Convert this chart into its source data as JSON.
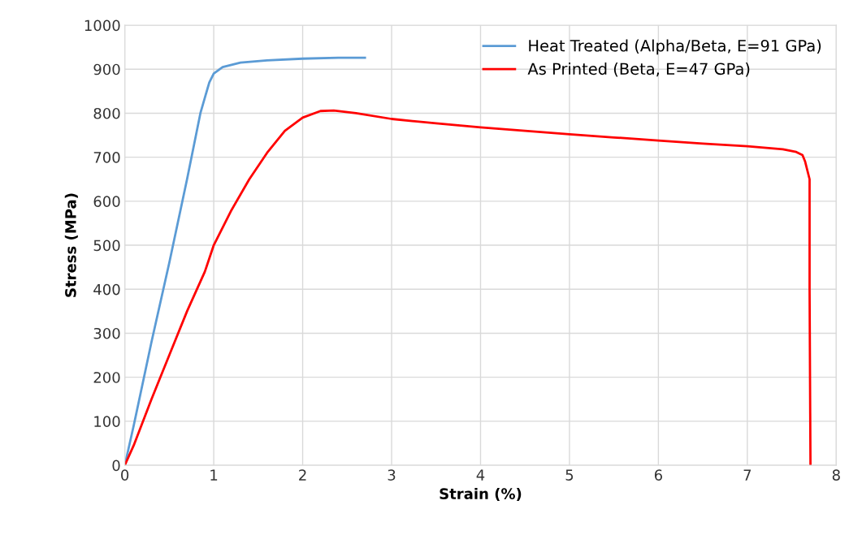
{
  "chart_data": {
    "type": "line",
    "xlabel": "Strain (%)",
    "ylabel": "Stress (MPa)",
    "xlim": [
      0,
      8
    ],
    "xticks": [
      0,
      1,
      2,
      3,
      4,
      5,
      6,
      7,
      8
    ],
    "ylim": [
      0,
      1000
    ],
    "yticks": [
      0,
      100,
      200,
      300,
      400,
      500,
      600,
      700,
      800,
      900,
      1000
    ],
    "grid": true,
    "legend": "top right",
    "marker": "none",
    "line_style": "solid",
    "series": [
      {
        "name": "Heat Treated (Alpha/Beta, E=91 GPa)",
        "color": "#5b9bd5",
        "x": [
          0,
          0.1,
          0.3,
          0.5,
          0.7,
          0.85,
          0.95,
          1.0,
          1.1,
          1.3,
          1.6,
          2.0,
          2.4,
          2.7
        ],
        "values": [
          0,
          90,
          280,
          460,
          650,
          800,
          870,
          890,
          905,
          915,
          920,
          924,
          926,
          926
        ]
      },
      {
        "name": "As Printed (Beta, E=47 GPa)",
        "color": "#ff0000",
        "x": [
          0,
          0.1,
          0.3,
          0.5,
          0.7,
          0.9,
          1.0,
          1.2,
          1.4,
          1.6,
          1.8,
          2.0,
          2.2,
          2.35,
          2.6,
          3,
          3.5,
          4,
          4.5,
          5,
          5.5,
          6,
          6.5,
          7,
          7.4,
          7.55,
          7.62,
          7.65,
          7.7,
          7.7,
          7.71
        ],
        "values": [
          0,
          45,
          150,
          250,
          350,
          440,
          500,
          580,
          650,
          710,
          760,
          790,
          805,
          806,
          800,
          787,
          777,
          768,
          760,
          752,
          745,
          738,
          731,
          725,
          718,
          712,
          705,
          690,
          650,
          400,
          0
        ]
      }
    ]
  }
}
